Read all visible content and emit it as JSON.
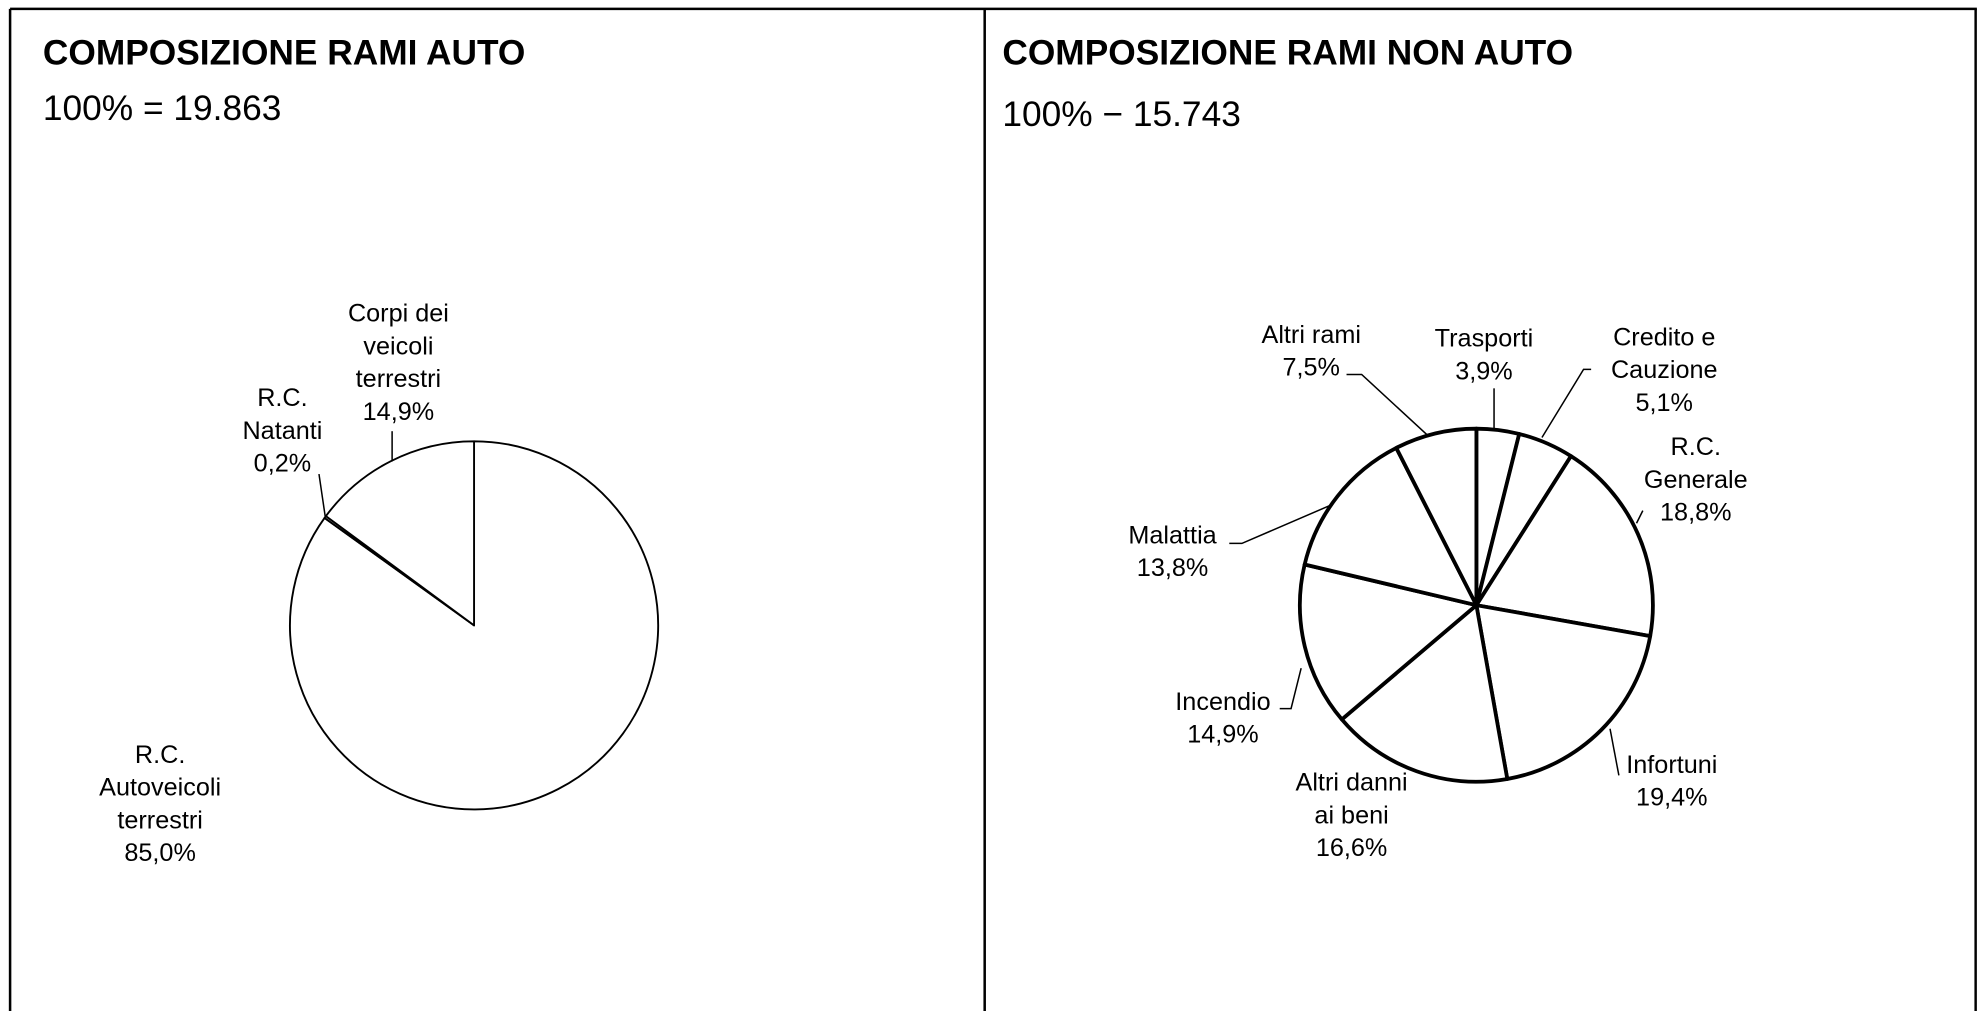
{
  "chart_data": [
    {
      "type": "pie",
      "title": "COMPOSIZIONE RAMI AUTO",
      "subtitle": "100% = 19.863",
      "categories": [
        "R.C.\nAutoveicoli\nterrestri",
        "R.C.\nNatanti",
        "Corpi dei\nveicoli\nterrestri"
      ],
      "values": [
        85.0,
        0.2,
        14.9
      ],
      "value_labels": [
        "85,0%",
        "0,2%",
        "14,9%"
      ],
      "color": "#ffffff"
    },
    {
      "type": "pie",
      "title": "COMPOSIZIONE RAMI NON AUTO",
      "subtitle": "100% − 15.743",
      "categories": [
        "Trasporti",
        "Credito e\nCauzione",
        "R.C.\nGenerale",
        "Infortuni",
        "Altri danni\nai beni",
        "Incendio",
        "Malattia",
        "Altri rami"
      ],
      "values": [
        3.9,
        5.1,
        18.8,
        19.4,
        16.6,
        14.9,
        13.8,
        7.5
      ],
      "value_labels": [
        "3,9%",
        "5,1%",
        "18,8%",
        "19,4%",
        "16,6%",
        "14,9%",
        "13,8%",
        "7,5%"
      ],
      "color": "#ffffff"
    }
  ]
}
